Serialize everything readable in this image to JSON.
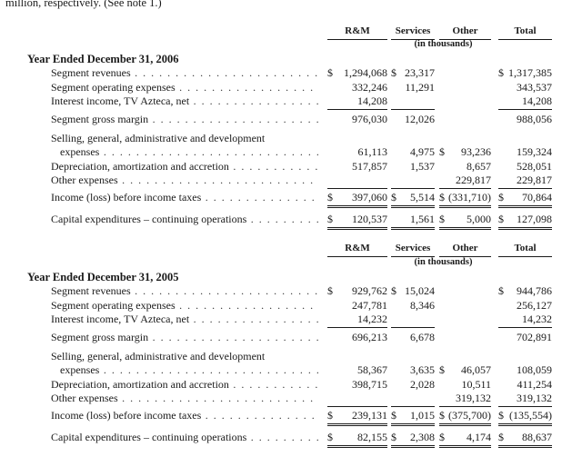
{
  "top_text": "million, respectively. (See note 1.)",
  "columns": [
    "R&M",
    "Services",
    "Other",
    "Total"
  ],
  "units": "(in thousands)",
  "sections": [
    {
      "title": "Year Ended December 31, 2006",
      "rows": [
        {
          "label": "Segment revenues",
          "leaders": ". . . . . . . . . . . . . . . . . . . . . . . . . . . . . .",
          "cells": [
            [
              "$",
              "1,294,068"
            ],
            [
              "$",
              "23,317"
            ],
            [
              "",
              ""
            ],
            [
              "$",
              "1,317,385"
            ]
          ]
        },
        {
          "label": "Segment operating expenses",
          "leaders": ". . . . . . . . . . . . . . . . . . . . . . .",
          "cells": [
            [
              "",
              "332,246"
            ],
            [
              "",
              "11,291"
            ],
            [
              "",
              ""
            ],
            [
              "",
              "343,537"
            ]
          ]
        },
        {
          "label": "Interest income, TV Azteca, net",
          "leaders": ". . . . . . . . . . . . . . . . . . .",
          "cells": [
            [
              "",
              "14,208"
            ],
            [
              "",
              ""
            ],
            [
              "",
              ""
            ],
            [
              "",
              "14,208"
            ]
          ]
        },
        {
          "label": "Segment gross margin",
          "leaders": ". . . . . . . . . . . . . . . . . . . . . . . . . . . . . .",
          "cells": [
            [
              "",
              "976,030"
            ],
            [
              "",
              "12,026"
            ],
            [
              "",
              ""
            ],
            [
              "",
              "988,056"
            ]
          ]
        },
        {
          "label": "Selling, general, administrative and development",
          "leaders": "",
          "cells": [
            [
              "",
              ""
            ],
            [
              "",
              ""
            ],
            [
              "",
              ""
            ],
            [
              "",
              ""
            ]
          ]
        },
        {
          "label": "expenses",
          "leaders": ". . . . . . . . . . . . . . . . . . . . . . . . . . . . . . . . . . . . .",
          "cells": [
            [
              "",
              "61,113"
            ],
            [
              "",
              "4,975"
            ],
            [
              "$",
              "93,236"
            ],
            [
              "",
              "159,324"
            ]
          ]
        },
        {
          "label": "Depreciation, amortization and accretion",
          "leaders": ". . . . . . . . . . . .",
          "cells": [
            [
              "",
              "517,857"
            ],
            [
              "",
              "1,537"
            ],
            [
              "",
              "8,657"
            ],
            [
              "",
              "528,051"
            ]
          ]
        },
        {
          "label": "Other expenses",
          "leaders": ". . . . . . . . . . . . . . . . . . . . . . . . . . . . . . . . . . . . .",
          "cells": [
            [
              "",
              ""
            ],
            [
              "",
              ""
            ],
            [
              "",
              "229,817"
            ],
            [
              "",
              "229,817"
            ]
          ]
        },
        {
          "label": "Income (loss) before income taxes",
          "leaders": ". . . . . . . . . . . . . . . . .",
          "cells": [
            [
              "$",
              "397,060"
            ],
            [
              "$",
              "5,514"
            ],
            [
              "$",
              "(331,710)"
            ],
            [
              "$",
              "70,864"
            ]
          ]
        },
        {
          "label": "Capital expenditures – continuing operations",
          "leaders": ". . . . . . . . . .",
          "cells": [
            [
              "$",
              "120,537"
            ],
            [
              "",
              "1,561"
            ],
            [
              "$",
              "5,000"
            ],
            [
              "$",
              "127,098"
            ]
          ]
        }
      ]
    },
    {
      "title": "Year Ended December 31, 2005",
      "rows": [
        {
          "label": "Segment revenues",
          "leaders": ". . . . . . . . . . . . . . . . . . . . . . . . . . . . . .",
          "cells": [
            [
              "$",
              "929,762"
            ],
            [
              "$",
              "15,024"
            ],
            [
              "",
              ""
            ],
            [
              "$",
              "944,786"
            ]
          ]
        },
        {
          "label": "Segment operating expenses",
          "leaders": ". . . . . . . . . . . . . . . . . . . . . . .",
          "cells": [
            [
              "",
              "247,781"
            ],
            [
              "",
              "8,346"
            ],
            [
              "",
              ""
            ],
            [
              "",
              "256,127"
            ]
          ]
        },
        {
          "label": "Interest income, TV Azteca, net",
          "leaders": ". . . . . . . . . . . . . . . . . . .",
          "cells": [
            [
              "",
              "14,232"
            ],
            [
              "",
              ""
            ],
            [
              "",
              ""
            ],
            [
              "",
              "14,232"
            ]
          ]
        },
        {
          "label": "Segment gross margin",
          "leaders": ". . . . . . . . . . . . . . . . . . . . . . . . . . . . . .",
          "cells": [
            [
              "",
              "696,213"
            ],
            [
              "",
              "6,678"
            ],
            [
              "",
              ""
            ],
            [
              "",
              "702,891"
            ]
          ]
        },
        {
          "label": "Selling, general, administrative and development",
          "leaders": "",
          "cells": [
            [
              "",
              ""
            ],
            [
              "",
              ""
            ],
            [
              "",
              ""
            ],
            [
              "",
              ""
            ]
          ]
        },
        {
          "label": "expenses",
          "leaders": ". . . . . . . . . . . . . . . . . . . . . . . . . . . . . . . . . . . . .",
          "cells": [
            [
              "",
              "58,367"
            ],
            [
              "",
              "3,635"
            ],
            [
              "$",
              "46,057"
            ],
            [
              "",
              "108,059"
            ]
          ]
        },
        {
          "label": "Depreciation, amortization and accretion",
          "leaders": ". . . . . . . . . . . .",
          "cells": [
            [
              "",
              "398,715"
            ],
            [
              "",
              "2,028"
            ],
            [
              "",
              "10,511"
            ],
            [
              "",
              "411,254"
            ]
          ]
        },
        {
          "label": "Other expenses",
          "leaders": ". . . . . . . . . . . . . . . . . . . . . . . . . . . . . . . . . . . . .",
          "cells": [
            [
              "",
              ""
            ],
            [
              "",
              ""
            ],
            [
              "",
              "319,132"
            ],
            [
              "",
              "319,132"
            ]
          ]
        },
        {
          "label": "Income (loss) before income taxes",
          "leaders": ". . . . . . . . . . . . . . . . .",
          "cells": [
            [
              "$",
              "239,131"
            ],
            [
              "$",
              "1,015"
            ],
            [
              "$",
              "(375,700)"
            ],
            [
              "$",
              "(135,554)"
            ]
          ]
        },
        {
          "label": "Capital expenditures – continuing operations",
          "leaders": ". . . . . . . . . .",
          "cells": [
            [
              "$",
              "82,155"
            ],
            [
              "$",
              "2,308"
            ],
            [
              "$",
              "4,174"
            ],
            [
              "$",
              "88,637"
            ]
          ]
        }
      ]
    }
  ]
}
